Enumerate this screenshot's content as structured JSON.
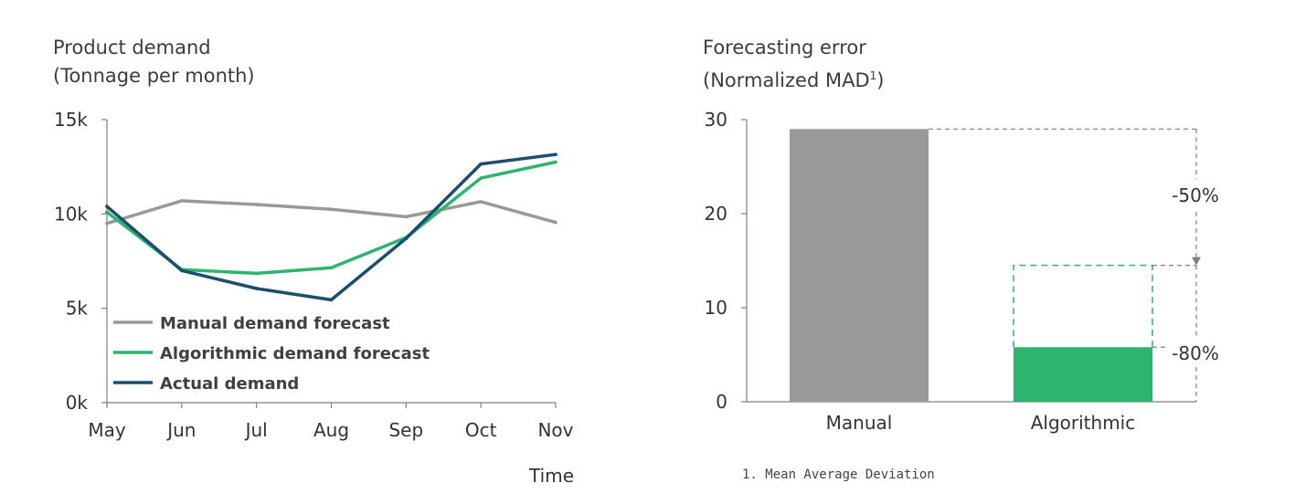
{
  "colors": {
    "manual": "#999999",
    "algorithmic": "#2db46e",
    "actual": "#1b4f6e",
    "axis": "#7f7f7f",
    "reference": "#7f7f7f"
  },
  "chart_data": [
    {
      "type": "line",
      "title": "Product demand",
      "subtitle": "(Tonnage per month)",
      "xlabel": "Time",
      "ylabel": "",
      "x": [
        "May",
        "Jun",
        "Jul",
        "Aug",
        "Sep",
        "Oct",
        "Nov"
      ],
      "ylim": [
        0,
        15000
      ],
      "yticks": [
        0,
        5000,
        10000,
        15000
      ],
      "ytick_labels": [
        "0k",
        "5k",
        "10k",
        "15k"
      ],
      "grid": false,
      "legend_position": "bottom-left",
      "series": [
        {
          "name": "Manual demand forecast",
          "color_key": "manual",
          "values": [
            9500,
            10700,
            10500,
            10250,
            9850,
            10650,
            9550
          ]
        },
        {
          "name": "Algorithmic demand forecast",
          "color_key": "algorithmic",
          "values": [
            10100,
            7050,
            6850,
            7150,
            8750,
            11900,
            12750
          ]
        },
        {
          "name": "Actual demand",
          "color_key": "actual",
          "values": [
            10400,
            7000,
            6050,
            5450,
            8700,
            12650,
            13150
          ]
        }
      ]
    },
    {
      "type": "bar",
      "title": "Forecasting error",
      "subtitle_text": "(Normalized MAD",
      "subtitle_sup": "1",
      "subtitle_end": ")",
      "categories": [
        "Manual",
        "Algorithmic"
      ],
      "values": [
        29,
        5.8
      ],
      "ylim": [
        0,
        30
      ],
      "yticks": [
        0,
        10,
        20,
        30
      ],
      "grid": false,
      "color_keys": [
        "manual",
        "algorithmic"
      ],
      "outline_value": 14.5,
      "annotations": [
        "-50%",
        "-80%"
      ],
      "footnote": "1. Mean Average Deviation"
    }
  ]
}
